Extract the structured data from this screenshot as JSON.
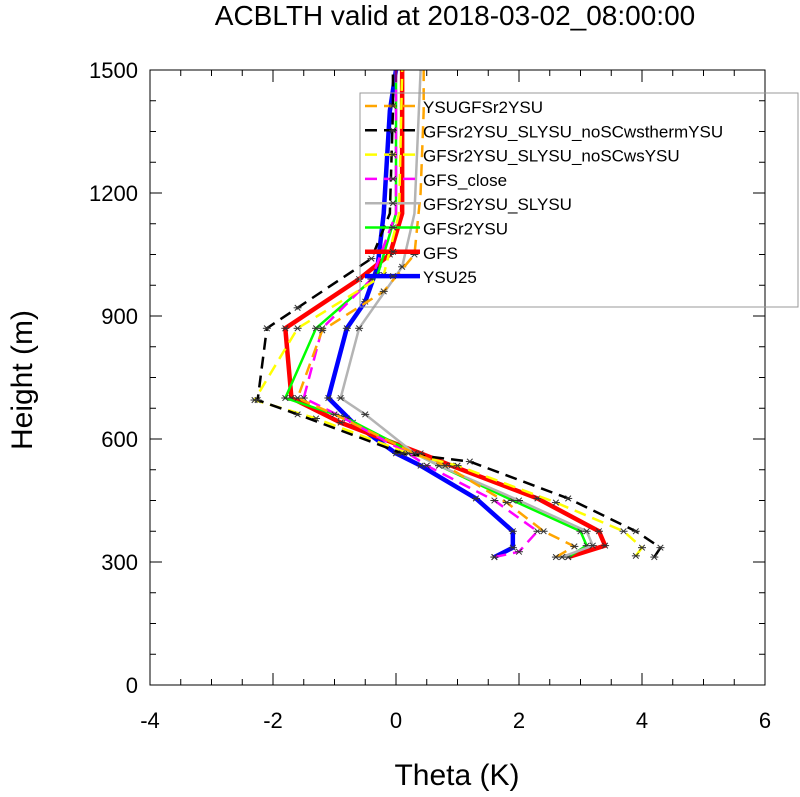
{
  "chart_data": {
    "type": "line",
    "title": "ACBLTH valid at 2018-03-02_08:00:00",
    "xlabel": "Theta (K)",
    "ylabel": "Height (m)",
    "xlim": [
      -4,
      6
    ],
    "ylim": [
      0,
      1500
    ],
    "xticks": [
      "-4",
      "-2",
      "0",
      "2",
      "4",
      "6"
    ],
    "yticks": [
      "0",
      "300",
      "600",
      "900",
      "1200",
      "1500"
    ],
    "grid": false,
    "legend_position": "top-right",
    "series": [
      {
        "name": "YSUGFSr2YSU",
        "color": "#ffa500",
        "dash": "dash",
        "values": [
          [
            2.6,
            312
          ],
          [
            2.9,
            338
          ],
          [
            2.4,
            375
          ],
          [
            1.8,
            445
          ],
          [
            0.8,
            535
          ],
          [
            0.3,
            565
          ],
          [
            -1.0,
            660
          ],
          [
            -1.6,
            700
          ],
          [
            -1.2,
            865
          ],
          [
            -0.2,
            960
          ],
          [
            0.3,
            1050
          ],
          [
            0.4,
            1200
          ],
          [
            0.45,
            1400
          ],
          [
            0.45,
            1500
          ]
        ]
      },
      {
        "name": "GFSr2YSU_SLYSU_noSCwsthermYSU",
        "color": "#000000",
        "dash": "dash",
        "values": [
          [
            4.2,
            312
          ],
          [
            4.3,
            335
          ],
          [
            3.9,
            375
          ],
          [
            2.8,
            455
          ],
          [
            1.2,
            545
          ],
          [
            0.1,
            565
          ],
          [
            -1.6,
            660
          ],
          [
            -2.25,
            695
          ],
          [
            -2.1,
            870
          ],
          [
            -1.6,
            920
          ],
          [
            -0.4,
            1040
          ],
          [
            -0.1,
            1150
          ],
          [
            -0.05,
            1400
          ],
          [
            -0.05,
            1500
          ]
        ]
      },
      {
        "name": "GFSr2YSU_SLYSU_noSCwsYSU",
        "color": "#ffff00",
        "dash": "dash",
        "values": [
          [
            3.9,
            315
          ],
          [
            4.0,
            335
          ],
          [
            3.7,
            375
          ],
          [
            2.6,
            445
          ],
          [
            1.0,
            535
          ],
          [
            0.2,
            565
          ],
          [
            -1.3,
            650
          ],
          [
            -2.3,
            695
          ],
          [
            -1.6,
            870
          ],
          [
            -0.2,
            1000
          ],
          [
            0.05,
            1150
          ],
          [
            0.1,
            1500
          ]
        ]
      },
      {
        "name": "GFS_close",
        "color": "#ff00ff",
        "dash": "dash",
        "values": [
          [
            1.6,
            312
          ],
          [
            2.0,
            325
          ],
          [
            2.3,
            375
          ],
          [
            1.6,
            450
          ],
          [
            0.5,
            535
          ],
          [
            0.2,
            565
          ],
          [
            -0.9,
            655
          ],
          [
            -1.5,
            700
          ],
          [
            -1.2,
            870
          ],
          [
            -0.4,
            990
          ],
          [
            0.0,
            1150
          ],
          [
            0.0,
            1500
          ]
        ]
      },
      {
        "name": "GFSr2YSU_SLYSU",
        "color": "#b4b4b4",
        "dash": "solid",
        "values": [
          [
            2.7,
            312
          ],
          [
            3.2,
            340
          ],
          [
            3.1,
            375
          ],
          [
            2.0,
            450
          ],
          [
            0.7,
            535
          ],
          [
            0.3,
            565
          ],
          [
            -0.5,
            660
          ],
          [
            -0.9,
            700
          ],
          [
            -0.6,
            870
          ],
          [
            0.1,
            1020
          ],
          [
            0.3,
            1150
          ],
          [
            0.4,
            1500
          ]
        ]
      },
      {
        "name": "GFSr2YSU",
        "color": "#00ff00",
        "dash": "solid",
        "values": [
          [
            2.8,
            312
          ],
          [
            3.1,
            340
          ],
          [
            3.0,
            375
          ],
          [
            1.9,
            450
          ],
          [
            0.7,
            535
          ],
          [
            0.3,
            565
          ],
          [
            -0.8,
            650
          ],
          [
            -1.8,
            700
          ],
          [
            -1.3,
            870
          ],
          [
            -0.3,
            1000
          ],
          [
            0.0,
            1150
          ],
          [
            0.0,
            1500
          ]
        ]
      },
      {
        "name": "GFS",
        "color": "#ff0000",
        "dash": "solid",
        "values": [
          [
            2.8,
            312
          ],
          [
            3.4,
            340
          ],
          [
            3.3,
            375
          ],
          [
            2.3,
            455
          ],
          [
            0.9,
            535
          ],
          [
            0.4,
            565
          ],
          [
            -0.9,
            640
          ],
          [
            -1.7,
            700
          ],
          [
            -1.8,
            870
          ],
          [
            -0.6,
            990
          ],
          [
            -0.1,
            1050
          ],
          [
            0.1,
            1150
          ],
          [
            0.1,
            1500
          ]
        ]
      },
      {
        "name": "YSU25",
        "color": "#0000ff",
        "dash": "solid",
        "values": [
          [
            1.6,
            312
          ],
          [
            1.9,
            335
          ],
          [
            1.9,
            375
          ],
          [
            1.3,
            455
          ],
          [
            0.4,
            535
          ],
          [
            0.0,
            565
          ],
          [
            -0.7,
            640
          ],
          [
            -1.1,
            700
          ],
          [
            -0.8,
            870
          ],
          [
            -0.5,
            935
          ],
          [
            -0.3,
            1020
          ],
          [
            -0.2,
            1150
          ],
          [
            -0.1,
            1400
          ],
          [
            0.0,
            1500
          ]
        ]
      }
    ]
  }
}
